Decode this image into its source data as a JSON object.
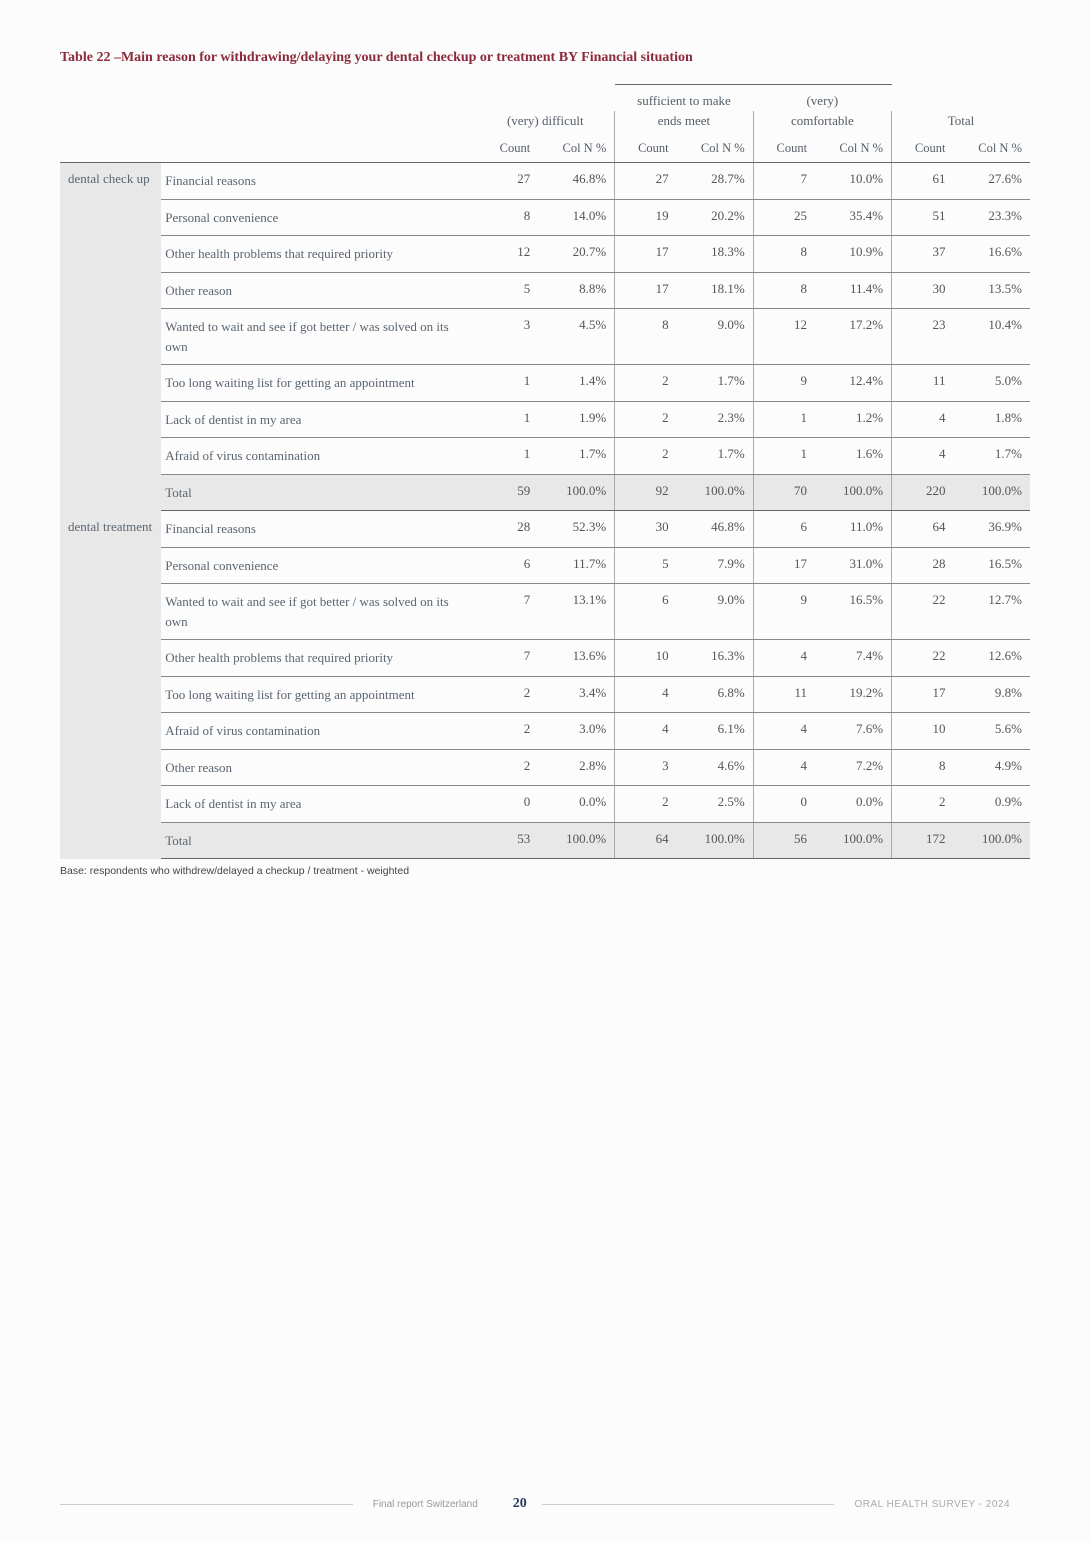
{
  "title": "Table 22 –Main reason for withdrawing/delaying your dental checkup or treatment BY Financial situation",
  "group_headers": {
    "g1_line1": "",
    "g1_line2": "(very) difficult",
    "g2_line1": "sufficient to make",
    "g2_line2": "ends meet",
    "g3_line1": "(very)",
    "g3_line2": "comfortable",
    "g4_line1": "",
    "g4_line2": "Total"
  },
  "sub_headers": [
    "Count",
    "Col N %",
    "Count",
    "Col N %",
    "Count",
    "Col N %",
    "Count",
    "Col N %"
  ],
  "categories": [
    {
      "label": "dental check up",
      "rows": [
        {
          "reason": "Financial reasons",
          "c1": "27",
          "p1": "46.8%",
          "c2": "27",
          "p2": "28.7%",
          "c3": "7",
          "p3": "10.0%",
          "c4": "61",
          "p4": "27.6%"
        },
        {
          "reason": "Personal convenience",
          "c1": "8",
          "p1": "14.0%",
          "c2": "19",
          "p2": "20.2%",
          "c3": "25",
          "p3": "35.4%",
          "c4": "51",
          "p4": "23.3%"
        },
        {
          "reason": "Other health problems that required priority",
          "c1": "12",
          "p1": "20.7%",
          "c2": "17",
          "p2": "18.3%",
          "c3": "8",
          "p3": "10.9%",
          "c4": "37",
          "p4": "16.6%"
        },
        {
          "reason": "Other reason",
          "c1": "5",
          "p1": "8.8%",
          "c2": "17",
          "p2": "18.1%",
          "c3": "8",
          "p3": "11.4%",
          "c4": "30",
          "p4": "13.5%"
        },
        {
          "reason": "Wanted to wait and see if got better / was solved on its own",
          "c1": "3",
          "p1": "4.5%",
          "c2": "8",
          "p2": "9.0%",
          "c3": "12",
          "p3": "17.2%",
          "c4": "23",
          "p4": "10.4%"
        },
        {
          "reason": "Too long waiting list for getting an appointment",
          "c1": "1",
          "p1": "1.4%",
          "c2": "2",
          "p2": "1.7%",
          "c3": "9",
          "p3": "12.4%",
          "c4": "11",
          "p4": "5.0%"
        },
        {
          "reason": "Lack of dentist in my area",
          "c1": "1",
          "p1": "1.9%",
          "c2": "2",
          "p2": "2.3%",
          "c3": "1",
          "p3": "1.2%",
          "c4": "4",
          "p4": "1.8%"
        },
        {
          "reason": "Afraid of virus contamination",
          "c1": "1",
          "p1": "1.7%",
          "c2": "2",
          "p2": "1.7%",
          "c3": "1",
          "p3": "1.6%",
          "c4": "4",
          "p4": "1.7%"
        }
      ],
      "total": {
        "reason": "Total",
        "c1": "59",
        "p1": "100.0%",
        "c2": "92",
        "p2": "100.0%",
        "c3": "70",
        "p3": "100.0%",
        "c4": "220",
        "p4": "100.0%"
      }
    },
    {
      "label": "dental treatment",
      "rows": [
        {
          "reason": "Financial reasons",
          "c1": "28",
          "p1": "52.3%",
          "c2": "30",
          "p2": "46.8%",
          "c3": "6",
          "p3": "11.0%",
          "c4": "64",
          "p4": "36.9%"
        },
        {
          "reason": "Personal convenience",
          "c1": "6",
          "p1": "11.7%",
          "c2": "5",
          "p2": "7.9%",
          "c3": "17",
          "p3": "31.0%",
          "c4": "28",
          "p4": "16.5%"
        },
        {
          "reason": "Wanted to wait and see if got better / was solved on its own",
          "c1": "7",
          "p1": "13.1%",
          "c2": "6",
          "p2": "9.0%",
          "c3": "9",
          "p3": "16.5%",
          "c4": "22",
          "p4": "12.7%"
        },
        {
          "reason": "Other health problems that required priority",
          "c1": "7",
          "p1": "13.6%",
          "c2": "10",
          "p2": "16.3%",
          "c3": "4",
          "p3": "7.4%",
          "c4": "22",
          "p4": "12.6%"
        },
        {
          "reason": "Too long waiting list for getting an appointment",
          "c1": "2",
          "p1": "3.4%",
          "c2": "4",
          "p2": "6.8%",
          "c3": "11",
          "p3": "19.2%",
          "c4": "17",
          "p4": "9.8%"
        },
        {
          "reason": "Afraid of virus contamination",
          "c1": "2",
          "p1": "3.0%",
          "c2": "4",
          "p2": "6.1%",
          "c3": "4",
          "p3": "7.6%",
          "c4": "10",
          "p4": "5.6%"
        },
        {
          "reason": "Other reason",
          "c1": "2",
          "p1": "2.8%",
          "c2": "3",
          "p2": "4.6%",
          "c3": "4",
          "p3": "7.2%",
          "c4": "8",
          "p4": "4.9%"
        },
        {
          "reason": "Lack of dentist in my area",
          "c1": "0",
          "p1": "0.0%",
          "c2": "2",
          "p2": "2.5%",
          "c3": "0",
          "p3": "0.0%",
          "c4": "2",
          "p4": "0.9%"
        }
      ],
      "total": {
        "reason": "Total",
        "c1": "53",
        "p1": "100.0%",
        "c2": "64",
        "p2": "100.0%",
        "c3": "56",
        "p3": "100.0%",
        "c4": "172",
        "p4": "100.0%"
      }
    }
  ],
  "footnote": "Base: respondents who withdrew/delayed a checkup / treatment - weighted",
  "footer": {
    "left": "Final report Switzerland",
    "page": "20",
    "right": "ORAL HEALTH SURVEY - 2024"
  },
  "col_widths": {
    "cat": "90px",
    "reason": "280px",
    "num": "60px",
    "pct": "70px"
  }
}
